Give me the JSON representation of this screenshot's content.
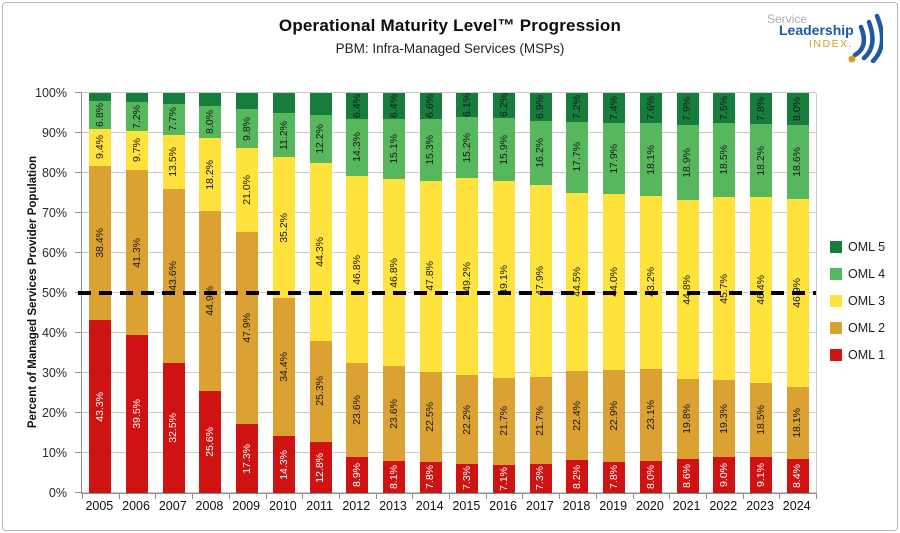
{
  "header": {
    "title": "Operational Maturity Level™ Progression",
    "subtitle": "PBM: Infra-Managed Services (MSPs)"
  },
  "logo": {
    "line1": "Service",
    "line2": "Leadership",
    "line3": "INDEX."
  },
  "y_axis": {
    "ticks": [
      "100%",
      "90%",
      "80%",
      "70%",
      "60%",
      "50%",
      "40%",
      "30%",
      "20%",
      "10%",
      "0%"
    ]
  },
  "chart_data": {
    "type": "bar",
    "stacked": true,
    "title": "Operational Maturity Level™ Progression",
    "subtitle": "PBM: Infra-Managed Services (MSPs)",
    "xlabel": "",
    "ylabel": "Percent of Managed Services Provider Population",
    "ylim": [
      0,
      100
    ],
    "ytick_step": 10,
    "grid": "horizontal",
    "legend_position": "right",
    "reference_line": {
      "y": 50,
      "style": "dashed",
      "color": "#000000"
    },
    "categories": [
      "2005",
      "2006",
      "2007",
      "2008",
      "2009",
      "2010",
      "2011",
      "2012",
      "2013",
      "2014",
      "2015",
      "2016",
      "2017",
      "2018",
      "2019",
      "2020",
      "2021",
      "2022",
      "2023",
      "2024"
    ],
    "series": [
      {
        "name": "OML 1",
        "color": "#CF1313",
        "label_color": "#FFFFFF",
        "values": [
          43.3,
          39.5,
          32.5,
          25.6,
          17.3,
          14.3,
          12.8,
          8.9,
          8.1,
          7.8,
          7.3,
          7.1,
          7.3,
          8.2,
          7.8,
          8.0,
          8.6,
          9.0,
          9.1,
          8.4
        ],
        "labels": [
          "43.3%",
          "39.5%",
          "32.5%",
          "25.6%",
          "17.3%",
          "14.3%",
          "12.8%",
          "8.9%",
          "8.1%",
          "7.8%",
          "7.3%",
          "7.1%",
          "7.3%",
          "8.2%",
          "7.8%",
          "8.0%",
          "8.6%",
          "9.0%",
          "9.1%",
          "8.4%"
        ]
      },
      {
        "name": "OML 2",
        "color": "#DBA133",
        "label_color": "#1A1A1A",
        "values": [
          38.4,
          41.3,
          43.6,
          44.9,
          47.9,
          34.4,
          25.3,
          23.6,
          23.6,
          22.5,
          22.2,
          21.7,
          21.7,
          22.4,
          22.9,
          23.1,
          19.8,
          19.3,
          18.5,
          18.1
        ],
        "labels": [
          "38.4%",
          "41.3%",
          "43.6%",
          "44.9%",
          "47.9%",
          "34.4%",
          "25.3%",
          "23.6%",
          "23.6%",
          "22.5%",
          "22.2%",
          "21.7%",
          "21.7%",
          "22.4%",
          "22.9%",
          "23.1%",
          "19.8%",
          "19.3%",
          "18.5%",
          "18.1%"
        ]
      },
      {
        "name": "OML 3",
        "color": "#FFE23B",
        "label_color": "#1A1A1A",
        "values": [
          9.4,
          9.7,
          13.5,
          18.2,
          21.0,
          35.2,
          44.3,
          46.8,
          46.8,
          47.8,
          49.2,
          49.1,
          47.9,
          44.5,
          44.0,
          43.2,
          44.8,
          45.7,
          46.4,
          46.9
        ],
        "labels": [
          "9.4%",
          "9.7%",
          "13.5%",
          "18.2%",
          "21.0%",
          "35.2%",
          "44.3%",
          "46.8%",
          "46.8%",
          "47.8%",
          "49.2%",
          "49.1%",
          "47.9%",
          "44.5%",
          "44.0%",
          "43.2%",
          "44.8%",
          "45.7%",
          "46.4%",
          "46.9%"
        ]
      },
      {
        "name": "OML 4",
        "color": "#57B75D",
        "label_color": "#1A1A1A",
        "values": [
          6.8,
          7.2,
          7.7,
          8.0,
          9.8,
          11.2,
          12.2,
          14.3,
          15.1,
          15.3,
          15.2,
          15.9,
          16.2,
          17.7,
          17.9,
          18.1,
          18.9,
          18.5,
          18.2,
          18.6
        ],
        "labels": [
          "6.8%",
          "7.2%",
          "7.7%",
          "8.0%",
          "9.8%",
          "11.2%",
          "12.2%",
          "14.3%",
          "15.1%",
          "15.3%",
          "15.2%",
          "15.9%",
          "16.2%",
          "17.7%",
          "17.9%",
          "18.1%",
          "18.9%",
          "18.5%",
          "18.2%",
          "18.6%"
        ]
      },
      {
        "name": "OML 5",
        "color": "#177D3D",
        "label_color": "#1A1A1A",
        "values": [
          2.1,
          2.3,
          2.7,
          3.3,
          4.0,
          4.9,
          5.4,
          6.4,
          6.4,
          6.6,
          6.1,
          6.2,
          6.9,
          7.2,
          7.4,
          7.6,
          7.9,
          7.5,
          7.8,
          8.0
        ],
        "labels": [
          null,
          null,
          null,
          null,
          null,
          null,
          null,
          "6.4%",
          "6.4%",
          "6.6%",
          "6.1%",
          "6.2%",
          "6.9%",
          "7.2%",
          "7.4%",
          "7.6%",
          "7.9%",
          "7.5%",
          "7.8%",
          "8.0%"
        ]
      }
    ],
    "legend": [
      "OML 5",
      "OML 4",
      "OML 3",
      "OML 2",
      "OML 1"
    ]
  }
}
